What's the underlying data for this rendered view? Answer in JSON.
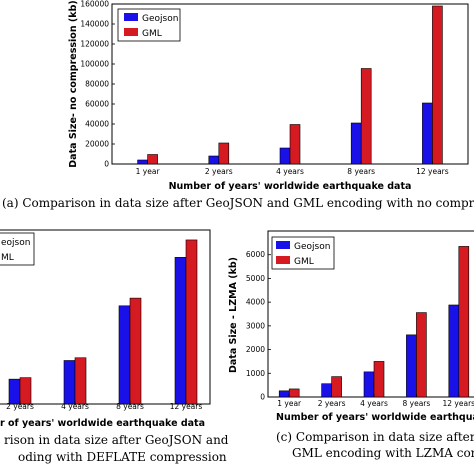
{
  "colors": {
    "geojson": "#1a10e8",
    "gml": "#d61a22"
  },
  "chart_data": [
    {
      "type": "bar",
      "categories": [
        "1 year",
        "2 years",
        "4 years",
        "8 years",
        "12 years"
      ],
      "series": [
        {
          "name": "Geojson",
          "values": [
            4000,
            8000,
            16000,
            41000,
            61000
          ]
        },
        {
          "name": "GML",
          "values": [
            9500,
            21000,
            39500,
            95500,
            158000
          ]
        }
      ],
      "xlabel": "Number of years' worldwide earthquake data",
      "ylabel": "Data Size- no compression (kb)",
      "yticks": [
        "0",
        "20000",
        "40000",
        "60000",
        "80000",
        "100000",
        "120000",
        "140000",
        "160000"
      ],
      "ylim": [
        0,
        160000
      ],
      "legend": "top-left",
      "caption": "(a) Comparison in data size after GeoJSON and GML encoding with no compres"
    },
    {
      "type": "bar",
      "categories": [
        "2 years",
        "4 years",
        "8 years",
        "12 years"
      ],
      "series": [
        {
          "name": "Geojson",
          "values": [
            1000,
            1750,
            3950,
            5900
          ]
        },
        {
          "name": "GML",
          "values": [
            1060,
            1860,
            4260,
            6600
          ]
        }
      ],
      "xlabel": "r of years' worldwide earthquake data",
      "ylim": [
        0,
        7000
      ],
      "legend": "top-left",
      "legend_labels": [
        "eojson",
        "ML"
      ],
      "caption_lines": [
        "rison in data size after GeoJSON and",
        "oding with DEFLATE compression"
      ]
    },
    {
      "type": "bar",
      "categories": [
        "1 year",
        "2 years",
        "4 years",
        "8 years",
        "12 years"
      ],
      "series": [
        {
          "name": "Geojson",
          "values": [
            260,
            560,
            1060,
            2620,
            3880
          ]
        },
        {
          "name": "GML",
          "values": [
            340,
            860,
            1500,
            3560,
            6350
          ]
        }
      ],
      "xlabel": "Number of years' worldwide earthquak",
      "ylabel": "Data Size - LZMA (kb)",
      "yticks": [
        "0",
        "1000",
        "2000",
        "3000",
        "4000",
        "5000",
        "6000"
      ],
      "ylim": [
        0,
        7000
      ],
      "legend": "top-left",
      "caption_lines": [
        "(c) Comparison in data size after C",
        "GML encoding with LZMA com"
      ]
    }
  ]
}
